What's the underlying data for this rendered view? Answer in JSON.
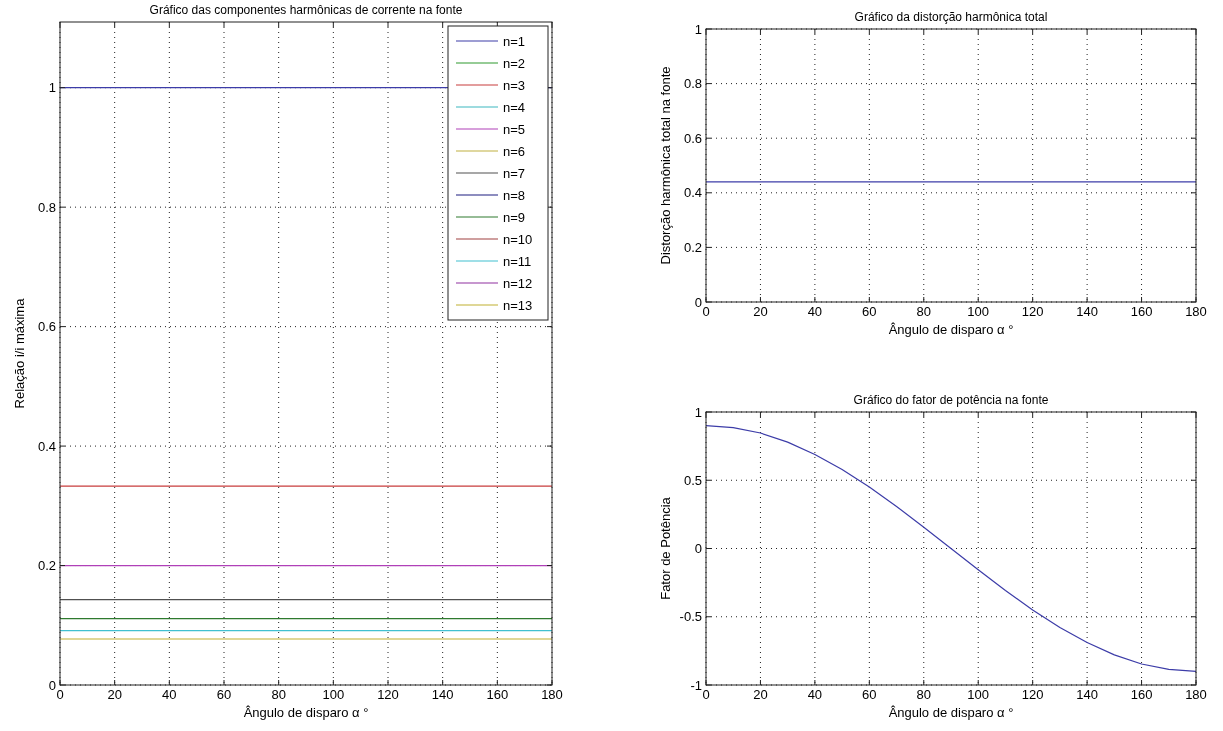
{
  "chart_data": [
    {
      "type": "line",
      "title": "Gráfico das componentes harmônicas de corrente na fonte",
      "xlabel": "Ângulo de disparo α °",
      "ylabel": "Relação i/i máxima",
      "x": [
        0,
        180
      ],
      "xlim": [
        0,
        180
      ],
      "xticks": [
        0,
        20,
        40,
        60,
        80,
        100,
        120,
        140,
        160,
        180
      ],
      "ylim": [
        0,
        1.11
      ],
      "yticks": [
        0,
        0.2,
        0.4,
        0.6,
        0.8,
        1
      ],
      "grid": true,
      "legend": "top right",
      "series": [
        {
          "name": "n=1",
          "color": "#3c3ca8",
          "values": [
            1,
            1
          ]
        },
        {
          "name": "n=2",
          "color": "#2e9a2e",
          "values": [
            null,
            null
          ]
        },
        {
          "name": "n=3",
          "color": "#c83c3c",
          "values": [
            0.333,
            0.333
          ]
        },
        {
          "name": "n=4",
          "color": "#3cb8c0",
          "values": [
            null,
            null
          ]
        },
        {
          "name": "n=5",
          "color": "#b040b8",
          "values": [
            0.2,
            0.2
          ]
        },
        {
          "name": "n=6",
          "color": "#c0b040",
          "values": [
            null,
            null
          ]
        },
        {
          "name": "n=7",
          "color": "#505050",
          "values": [
            0.143,
            0.143
          ]
        },
        {
          "name": "n=8",
          "color": "#1c1c80",
          "values": [
            null,
            null
          ]
        },
        {
          "name": "n=9",
          "color": "#2e7a2e",
          "values": [
            0.111,
            0.111
          ]
        },
        {
          "name": "n=10",
          "color": "#a04040",
          "values": [
            null,
            null
          ]
        },
        {
          "name": "n=11",
          "color": "#40c0d0",
          "values": [
            0.091,
            0.091
          ]
        },
        {
          "name": "n=12",
          "color": "#9030a0",
          "values": [
            null,
            null
          ]
        },
        {
          "name": "n=13",
          "color": "#c0b030",
          "values": [
            0.077,
            0.077
          ]
        }
      ]
    },
    {
      "type": "line",
      "title": "Gráfico da distorção harmônica total",
      "xlabel": "Ângulo de disparo α °",
      "ylabel": "Distorção harmônica total na fonte",
      "x": [
        0,
        180
      ],
      "xlim": [
        0,
        180
      ],
      "xticks": [
        0,
        20,
        40,
        60,
        80,
        100,
        120,
        140,
        160,
        180
      ],
      "ylim": [
        0,
        1
      ],
      "yticks": [
        0,
        0.2,
        0.4,
        0.6,
        0.8,
        1
      ],
      "grid": true,
      "series": [
        {
          "color": "#3c3ca8",
          "values": [
            0.44,
            0.44
          ]
        }
      ]
    },
    {
      "type": "line",
      "title": "Gráfico do fator de potência na fonte",
      "xlabel": "Ângulo de disparo α °",
      "ylabel": "Fator de Potência",
      "x": [
        0,
        10,
        20,
        30,
        40,
        50,
        60,
        70,
        80,
        90,
        100,
        110,
        120,
        130,
        140,
        150,
        160,
        170,
        180
      ],
      "xlim": [
        0,
        180
      ],
      "xticks": [
        0,
        20,
        40,
        60,
        80,
        100,
        120,
        140,
        160,
        180
      ],
      "ylim": [
        -1,
        1
      ],
      "yticks": [
        -1,
        -0.5,
        0,
        0.5,
        1
      ],
      "grid": true,
      "series": [
        {
          "color": "#3c3ca8",
          "values": [
            0.9,
            0.886,
            0.846,
            0.779,
            0.689,
            0.579,
            0.45,
            0.308,
            0.156,
            0,
            -0.156,
            -0.308,
            -0.45,
            -0.579,
            -0.689,
            -0.779,
            -0.846,
            -0.886,
            -0.9
          ]
        }
      ]
    }
  ]
}
